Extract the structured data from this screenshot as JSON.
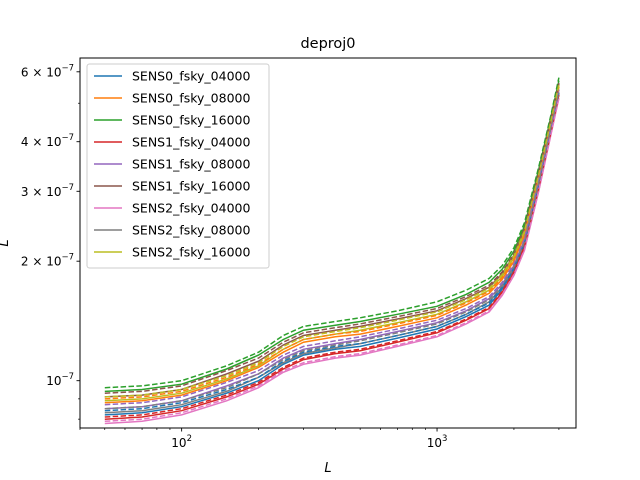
{
  "chart_data": {
    "type": "line",
    "title": "deproj0",
    "xlabel": "L",
    "ylabel": "L",
    "xscale": "log",
    "yscale": "log",
    "xlim": [
      40,
      3500
    ],
    "ylim": [
      7.6e-08,
      6.5e-07
    ],
    "grid": false,
    "legend_position": "top-left",
    "x_ticks": [
      {
        "value": 100,
        "base": "10",
        "exp": "2"
      },
      {
        "value": 1000,
        "base": "10",
        "exp": "3"
      }
    ],
    "y_ticks": [
      {
        "value": 1e-07,
        "mant": "10",
        "exp": "−7"
      },
      {
        "value": 2e-07,
        "mant": "2 × 10",
        "exp": "−7"
      },
      {
        "value": 3e-07,
        "mant": "3 × 10",
        "exp": "−7"
      },
      {
        "value": 4e-07,
        "mant": "4 × 10",
        "exp": "−7"
      },
      {
        "value": 6e-07,
        "mant": "6 × 10",
        "exp": "−7"
      }
    ],
    "x": [
      50,
      70,
      100,
      150,
      200,
      250,
      300,
      400,
      500,
      700,
      1000,
      1300,
      1600,
      1800,
      2000,
      2200,
      2500,
      2800,
      3000
    ],
    "series": [
      {
        "name": "SENS0_fsky_04000",
        "color": "#1f77b4",
        "values": [
          8.2e-08,
          8.3e-08,
          8.6e-08,
          9.3e-08,
          1e-07,
          1.1e-07,
          1.16e-07,
          1.2e-07,
          1.22e-07,
          1.28e-07,
          1.35e-07,
          1.45e-07,
          1.55e-07,
          1.7e-07,
          1.9e-07,
          2.2e-07,
          3.1e-07,
          4.3e-07,
          5.3e-07
        ]
      },
      {
        "name": "SENS0_fsky_08000",
        "color": "#ff7f0e",
        "values": [
          8.8e-08,
          8.9e-08,
          9.2e-08,
          1e-07,
          1.08e-07,
          1.18e-07,
          1.25e-07,
          1.29e-07,
          1.31e-07,
          1.37e-07,
          1.44e-07,
          1.55e-07,
          1.66e-07,
          1.8e-07,
          2e-07,
          2.32e-07,
          3.25e-07,
          4.5e-07,
          5.5e-07
        ]
      },
      {
        "name": "SENS0_fsky_16000",
        "color": "#2ca02c",
        "values": [
          9.4e-08,
          9.5e-08,
          9.8e-08,
          1.07e-07,
          1.16e-07,
          1.27e-07,
          1.34e-07,
          1.38e-07,
          1.41e-07,
          1.47e-07,
          1.54e-07,
          1.65e-07,
          1.77e-07,
          1.91e-07,
          2.12e-07,
          2.45e-07,
          3.4e-07,
          4.65e-07,
          5.7e-07
        ]
      },
      {
        "name": "SENS1_fsky_04000",
        "color": "#d62728",
        "values": [
          8e-08,
          8.1e-08,
          8.4e-08,
          9.1e-08,
          9.8e-08,
          1.07e-07,
          1.13e-07,
          1.17e-07,
          1.19e-07,
          1.25e-07,
          1.32e-07,
          1.42e-07,
          1.52e-07,
          1.67e-07,
          1.87e-07,
          2.17e-07,
          3.05e-07,
          4.25e-07,
          5.25e-07
        ]
      },
      {
        "name": "SENS1_fsky_08000",
        "color": "#9467bd",
        "values": [
          8.5e-08,
          8.6e-08,
          8.9e-08,
          9.7e-08,
          1.04e-07,
          1.14e-07,
          1.2e-07,
          1.24e-07,
          1.27e-07,
          1.33e-07,
          1.4e-07,
          1.5e-07,
          1.61e-07,
          1.75e-07,
          1.95e-07,
          2.26e-07,
          3.18e-07,
          4.4e-07,
          5.4e-07
        ]
      },
      {
        "name": "SENS1_fsky_16000",
        "color": "#8c564b",
        "values": [
          9.1e-08,
          9.2e-08,
          9.5e-08,
          1.04e-07,
          1.12e-07,
          1.23e-07,
          1.3e-07,
          1.34e-07,
          1.37e-07,
          1.43e-07,
          1.5e-07,
          1.61e-07,
          1.72e-07,
          1.86e-07,
          2.07e-07,
          2.4e-07,
          3.33e-07,
          4.58e-07,
          5.6e-07
        ]
      },
      {
        "name": "SENS2_fsky_04000",
        "color": "#e377c2",
        "values": [
          7.8e-08,
          7.9e-08,
          8.2e-08,
          8.9e-08,
          9.6e-08,
          1.05e-07,
          1.1e-07,
          1.14e-07,
          1.16e-07,
          1.22e-07,
          1.29e-07,
          1.39e-07,
          1.49e-07,
          1.64e-07,
          1.84e-07,
          2.13e-07,
          3e-07,
          4.2e-07,
          5.15e-07
        ]
      },
      {
        "name": "SENS2_fsky_08000",
        "color": "#7f7f7f",
        "values": [
          8.3e-08,
          8.4e-08,
          8.7e-08,
          9.4e-08,
          1.02e-07,
          1.11e-07,
          1.17e-07,
          1.21e-07,
          1.24e-07,
          1.3e-07,
          1.37e-07,
          1.47e-07,
          1.58e-07,
          1.72e-07,
          1.92e-07,
          2.22e-07,
          3.12e-07,
          4.35e-07,
          5.3e-07
        ]
      },
      {
        "name": "SENS2_fsky_16000",
        "color": "#bcbd22",
        "values": [
          8.9e-08,
          9e-08,
          9.3e-08,
          1.01e-07,
          1.09e-07,
          1.2e-07,
          1.27e-07,
          1.31e-07,
          1.34e-07,
          1.4e-07,
          1.47e-07,
          1.58e-07,
          1.69e-07,
          1.83e-07,
          2.04e-07,
          2.36e-07,
          3.28e-07,
          4.52e-07,
          5.55e-07
        ]
      }
    ],
    "dashed_series": [
      {
        "color": "#1f77b4",
        "values": [
          8.4e-08,
          8.5e-08,
          8.8e-08,
          9.5e-08,
          1.02e-07,
          1.12e-07,
          1.18e-07,
          1.22e-07,
          1.24e-07,
          1.3e-07,
          1.37e-07,
          1.47e-07,
          1.57e-07,
          1.72e-07,
          1.92e-07,
          2.22e-07,
          3.12e-07,
          4.32e-07,
          5.32e-07
        ]
      },
      {
        "color": "#ff7f0e",
        "values": [
          9e-08,
          9.1e-08,
          9.4e-08,
          1.02e-07,
          1.1e-07,
          1.2e-07,
          1.27e-07,
          1.31e-07,
          1.33e-07,
          1.39e-07,
          1.46e-07,
          1.57e-07,
          1.68e-07,
          1.82e-07,
          2.02e-07,
          2.34e-07,
          3.27e-07,
          4.52e-07,
          5.52e-07
        ]
      },
      {
        "color": "#2ca02c",
        "values": [
          9.6e-08,
          9.7e-08,
          1e-07,
          1.09e-07,
          1.18e-07,
          1.3e-07,
          1.37e-07,
          1.41e-07,
          1.44e-07,
          1.5e-07,
          1.58e-07,
          1.69e-07,
          1.81e-07,
          1.95e-07,
          2.16e-07,
          2.5e-07,
          3.45e-07,
          4.7e-07,
          5.8e-07
        ]
      },
      {
        "color": "#d62728",
        "values": [
          8.1e-08,
          8.2e-08,
          8.5e-08,
          9.2e-08,
          9.9e-08,
          1.08e-07,
          1.14e-07,
          1.18e-07,
          1.2e-07,
          1.26e-07,
          1.33e-07,
          1.43e-07,
          1.53e-07,
          1.68e-07,
          1.88e-07,
          2.18e-07,
          3.06e-07,
          4.26e-07,
          5.26e-07
        ]
      },
      {
        "color": "#9467bd",
        "values": [
          8.7e-08,
          8.8e-08,
          9.1e-08,
          9.9e-08,
          1.06e-07,
          1.16e-07,
          1.22e-07,
          1.26e-07,
          1.29e-07,
          1.35e-07,
          1.42e-07,
          1.52e-07,
          1.63e-07,
          1.77e-07,
          1.97e-07,
          2.28e-07,
          3.2e-07,
          4.42e-07,
          5.42e-07
        ]
      },
      {
        "color": "#8c564b",
        "values": [
          9.3e-08,
          9.4e-08,
          9.7e-08,
          1.06e-07,
          1.14e-07,
          1.25e-07,
          1.32e-07,
          1.36e-07,
          1.39e-07,
          1.45e-07,
          1.52e-07,
          1.63e-07,
          1.74e-07,
          1.88e-07,
          2.09e-07,
          2.42e-07,
          3.35e-07,
          4.6e-07,
          5.62e-07
        ]
      },
      {
        "color": "#e377c2",
        "values": [
          7.9e-08,
          8e-08,
          8.3e-08,
          9e-08,
          9.7e-08,
          1.06e-07,
          1.11e-07,
          1.15e-07,
          1.17e-07,
          1.23e-07,
          1.3e-07,
          1.4e-07,
          1.5e-07,
          1.65e-07,
          1.85e-07,
          2.14e-07,
          3.01e-07,
          4.21e-07,
          5.16e-07
        ]
      },
      {
        "color": "#7f7f7f",
        "values": [
          8.5e-08,
          8.6e-08,
          8.9e-08,
          9.6e-08,
          1.04e-07,
          1.13e-07,
          1.19e-07,
          1.23e-07,
          1.26e-07,
          1.32e-07,
          1.39e-07,
          1.49e-07,
          1.6e-07,
          1.74e-07,
          1.94e-07,
          2.24e-07,
          3.14e-07,
          4.37e-07,
          5.32e-07
        ]
      },
      {
        "color": "#bcbd22",
        "values": [
          9.1e-08,
          9.2e-08,
          9.5e-08,
          1.03e-07,
          1.11e-07,
          1.22e-07,
          1.29e-07,
          1.33e-07,
          1.36e-07,
          1.42e-07,
          1.49e-07,
          1.6e-07,
          1.71e-07,
          1.85e-07,
          2.06e-07,
          2.38e-07,
          3.3e-07,
          4.54e-07,
          5.57e-07
        ]
      }
    ]
  }
}
